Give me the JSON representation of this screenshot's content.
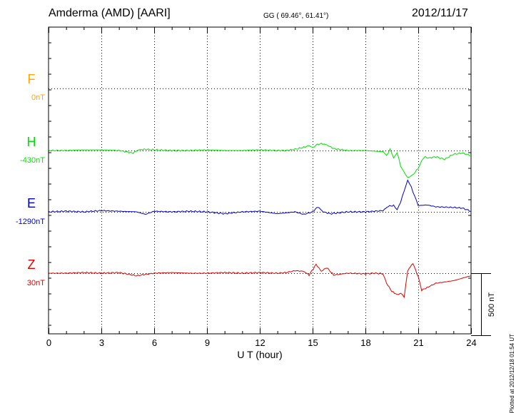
{
  "header": {
    "station": "Amderma (AMD)  [AARI]",
    "coords": "GG ( 69.46°,  61.41°)",
    "date": "2012/11/17"
  },
  "plot_note": "Plotted at 2012/12/18 01:54 UT",
  "chart_data": {
    "type": "line",
    "xlabel": "U T (hour)",
    "xlim": [
      0,
      24
    ],
    "xticks": [
      0,
      3,
      6,
      9,
      12,
      15,
      18,
      21,
      24
    ],
    "scale_bar_label": "500 nT",
    "scale_nT": 500,
    "grid": true,
    "series": [
      {
        "name": "F",
        "baseline_label": "0nT",
        "color": "#FFA500",
        "x": [],
        "values": []
      },
      {
        "name": "H",
        "baseline_label": "-430nT",
        "color": "#00E000",
        "x": [
          0,
          1,
          2,
          3,
          4,
          4.8,
          5.1,
          5.5,
          6,
          7,
          8,
          9,
          10,
          11,
          12,
          13,
          13.5,
          14,
          14.5,
          14.8,
          15.0,
          15.2,
          15.5,
          15.8,
          16.2,
          17,
          18,
          18.5,
          19,
          19.2,
          19.4,
          19.6,
          19.8,
          20.0,
          20.2,
          20.4,
          20.6,
          20.8,
          21.0,
          21.2,
          21.4,
          21.6,
          22,
          22.5,
          23,
          23.5,
          24
        ],
        "values": [
          0,
          0,
          5,
          5,
          0,
          -20,
          5,
          10,
          5,
          0,
          0,
          5,
          0,
          0,
          5,
          0,
          0,
          10,
          25,
          40,
          20,
          45,
          55,
          45,
          15,
          0,
          0,
          -5,
          -10,
          -40,
          10,
          -60,
          -15,
          -125,
          -170,
          -220,
          -200,
          -180,
          -140,
          -80,
          -50,
          -60,
          -50,
          -70,
          -30,
          -20,
          -40
        ]
      },
      {
        "name": "E",
        "baseline_label": "-1290nT",
        "color": "#0000CC",
        "x": [
          0,
          1,
          2,
          3,
          4,
          5,
          5.5,
          6,
          7,
          8,
          9,
          10,
          11,
          12,
          13,
          14,
          14.5,
          15,
          15.3,
          15.6,
          16,
          17,
          18,
          18.5,
          19,
          19.3,
          19.6,
          19.8,
          20,
          20.2,
          20.4,
          20.6,
          20.8,
          21,
          21.5,
          22,
          23,
          23.5,
          24
        ],
        "values": [
          0,
          5,
          0,
          10,
          5,
          0,
          -20,
          5,
          0,
          5,
          0,
          -15,
          0,
          5,
          -15,
          0,
          -20,
          0,
          40,
          0,
          -15,
          0,
          0,
          5,
          10,
          45,
          50,
          20,
          75,
          170,
          250,
          200,
          125,
          50,
          55,
          40,
          35,
          30,
          5
        ]
      },
      {
        "name": "Z",
        "baseline_label": "30nT",
        "color": "#DD0000",
        "x": [
          0,
          1,
          2,
          3,
          4,
          5,
          5.5,
          6,
          7,
          8,
          9,
          10,
          11,
          12,
          13,
          13.5,
          14,
          14.5,
          14.8,
          15.2,
          15.5,
          15.8,
          16.2,
          17,
          18,
          18.5,
          19,
          19.2,
          19.5,
          19.8,
          20,
          20.2,
          20.4,
          20.7,
          21,
          21.2,
          21.5,
          22,
          23,
          23.5,
          24
        ],
        "values": [
          0,
          0,
          5,
          0,
          5,
          -20,
          -10,
          0,
          5,
          0,
          0,
          5,
          0,
          5,
          0,
          5,
          20,
          15,
          -15,
          70,
          15,
          45,
          -15,
          0,
          -5,
          0,
          -5,
          -80,
          -145,
          -170,
          -160,
          -190,
          20,
          80,
          -30,
          -135,
          -115,
          -80,
          -60,
          -40,
          -20
        ]
      }
    ]
  }
}
